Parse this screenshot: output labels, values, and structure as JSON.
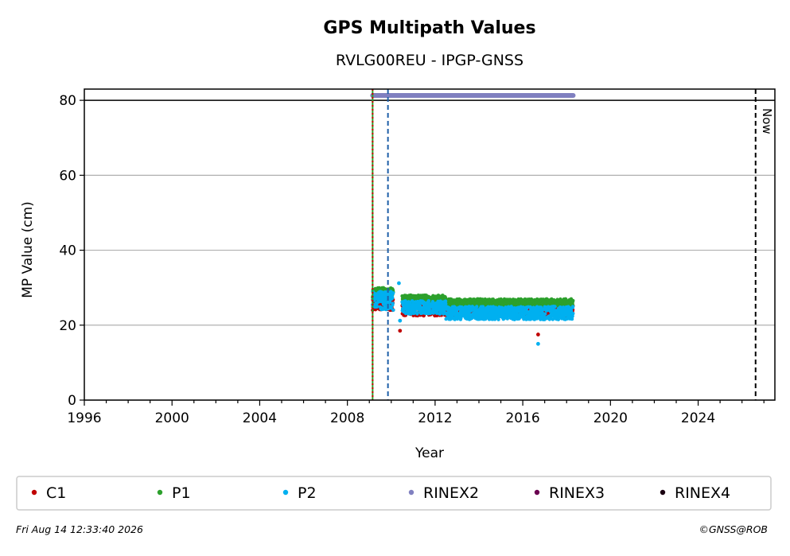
{
  "chart_data": {
    "type": "scatter",
    "title": "GPS Multipath Values",
    "subtitle": "RVLG00REU - IPGP-GNSS",
    "xlabel": "Year",
    "ylabel": "MP Value (cm)",
    "xlim": [
      1996,
      2027.5
    ],
    "ylim": [
      0,
      83
    ],
    "x_ticks": [
      1996,
      2000,
      2004,
      2008,
      2012,
      2016,
      2020,
      2024
    ],
    "x_tick_labels": [
      "1996",
      "2000",
      "2004",
      "2008",
      "2012",
      "2016",
      "2020",
      "2024"
    ],
    "y_ticks": [
      0,
      20,
      40,
      60,
      80
    ],
    "y_tick_labels": [
      "0",
      "20",
      "40",
      "60",
      "80"
    ],
    "grid": "horizontal",
    "reference_line_y": 80,
    "vertical_lines": [
      {
        "x": 2009.15,
        "color": "#2ca02c",
        "style": "solid"
      },
      {
        "x": 2009.15,
        "color": "#cc0000",
        "style": "dotted"
      },
      {
        "x": 2009.85,
        "color": "#1f5fa8",
        "style": "dashed"
      },
      {
        "x": 2026.62,
        "color": "#000000",
        "style": "dashed",
        "label": "Now"
      }
    ],
    "series": [
      {
        "name": "C1",
        "color": "#c00000",
        "segments": [
          {
            "x_start": 2009.15,
            "x_end": 2010.1,
            "low": 24.0,
            "high": 27.0
          },
          {
            "x_start": 2010.5,
            "x_end": 2018.3,
            "low": 22.5,
            "high": 25.5
          }
        ],
        "outliers": [
          {
            "x": 2010.4,
            "y": 18.5
          },
          {
            "x": 2016.7,
            "y": 17.5
          }
        ]
      },
      {
        "name": "P1",
        "color": "#2ca02c",
        "segments": [
          {
            "x_start": 2009.15,
            "x_end": 2010.1,
            "low": 27.0,
            "high": 30.0
          },
          {
            "x_start": 2010.5,
            "x_end": 2012.5,
            "low": 26.0,
            "high": 28.0
          },
          {
            "x_start": 2012.5,
            "x_end": 2018.3,
            "low": 25.0,
            "high": 27.0
          }
        ],
        "outliers": []
      },
      {
        "name": "P2",
        "color": "#00b0f0",
        "segments": [
          {
            "x_start": 2009.15,
            "x_end": 2010.1,
            "low": 24.0,
            "high": 29.0
          },
          {
            "x_start": 2010.5,
            "x_end": 2012.5,
            "low": 23.0,
            "high": 26.5
          },
          {
            "x_start": 2012.5,
            "x_end": 2018.3,
            "low": 21.5,
            "high": 25.0
          }
        ],
        "outliers": [
          {
            "x": 2010.35,
            "y": 31.2
          },
          {
            "x": 2010.4,
            "y": 21.2
          },
          {
            "x": 2016.7,
            "y": 15.0
          }
        ]
      },
      {
        "name": "RINEX2",
        "color": "#8080c0",
        "segments": [
          {
            "x_start": 2009.15,
            "x_end": 2018.3,
            "low": 81.3,
            "high": 81.3
          }
        ],
        "outliers": []
      },
      {
        "name": "RINEX3",
        "color": "#6a0050",
        "segments": [],
        "outliers": []
      },
      {
        "name": "RINEX4",
        "color": "#1a0010",
        "segments": [],
        "outliers": []
      }
    ]
  },
  "footer": {
    "timestamp": "Fri Aug 14 12:33:40 2026",
    "copyright": "©GNSS@ROB"
  }
}
